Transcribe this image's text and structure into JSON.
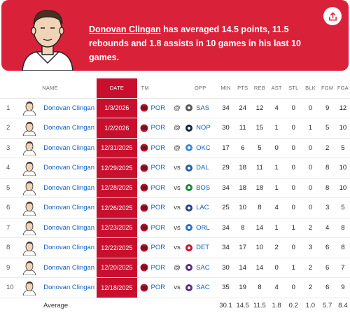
{
  "banner": {
    "player_name": "Donovan Clingan",
    "summary_text": " has averaged 14.5 points, 11.5 rebounds and 1.8 assists in 10 games in his last 10 games.",
    "share_icon": "share-icon"
  },
  "table": {
    "headers": {
      "rank": "",
      "name": "NAME",
      "date": "DATE",
      "tm": "TM",
      "ha": "",
      "opp": "OPP",
      "min": "MIN",
      "pts": "PTS",
      "reb": "REB",
      "ast": "AST",
      "stl": "STL",
      "blk": "BLK",
      "fgm": "FGM",
      "fga": "FGA"
    },
    "rows": [
      {
        "rank": "1",
        "name": "Donovan Clingan",
        "date": "1/3/2026",
        "tm": "POR",
        "ha": "@",
        "opp": "SAS",
        "min": "34",
        "pts": "24",
        "reb": "12",
        "ast": "4",
        "stl": "0",
        "blk": "0",
        "fgm": "9",
        "fga": "12",
        "opp_color": "#555555",
        "opp_icon": "spurs-logo-icon"
      },
      {
        "rank": "2",
        "name": "Donovan Clingan",
        "date": "1/2/2026",
        "tm": "POR",
        "ha": "@",
        "opp": "NOP",
        "min": "30",
        "pts": "11",
        "reb": "15",
        "ast": "1",
        "stl": "0",
        "blk": "1",
        "fgm": "5",
        "fga": "10",
        "opp_color": "#0c2340",
        "opp_icon": "pelicans-logo-icon"
      },
      {
        "rank": "3",
        "name": "Donovan Clingan",
        "date": "12/31/2025",
        "tm": "POR",
        "ha": "@",
        "opp": "OKC",
        "min": "17",
        "pts": "6",
        "reb": "5",
        "ast": "0",
        "stl": "0",
        "blk": "0",
        "fgm": "2",
        "fga": "5",
        "opp_color": "#3a8bd8",
        "opp_icon": "thunder-logo-icon"
      },
      {
        "rank": "4",
        "name": "Donovan Clingan",
        "date": "12/29/2025",
        "tm": "POR",
        "ha": "vs",
        "opp": "DAL",
        "min": "29",
        "pts": "18",
        "reb": "11",
        "ast": "1",
        "stl": "0",
        "blk": "0",
        "fgm": "8",
        "fga": "10",
        "opp_color": "#1d5fa8",
        "opp_icon": "mavericks-logo-icon"
      },
      {
        "rank": "5",
        "name": "Donovan Clingan",
        "date": "12/28/2025",
        "tm": "POR",
        "ha": "vs",
        "opp": "BOS",
        "min": "34",
        "pts": "18",
        "reb": "18",
        "ast": "1",
        "stl": "0",
        "blk": "0",
        "fgm": "8",
        "fga": "10",
        "opp_color": "#188a3c",
        "opp_icon": "celtics-logo-icon"
      },
      {
        "rank": "6",
        "name": "Donovan Clingan",
        "date": "12/26/2025",
        "tm": "POR",
        "ha": "vs",
        "opp": "LAC",
        "min": "25",
        "pts": "10",
        "reb": "8",
        "ast": "4",
        "stl": "0",
        "blk": "0",
        "fgm": "3",
        "fga": "5",
        "opp_color": "#1d428a",
        "opp_icon": "clippers-logo-icon"
      },
      {
        "rank": "7",
        "name": "Donovan Clingan",
        "date": "12/23/2025",
        "tm": "POR",
        "ha": "vs",
        "opp": "ORL",
        "min": "34",
        "pts": "8",
        "reb": "14",
        "ast": "1",
        "stl": "1",
        "blk": "2",
        "fgm": "4",
        "fga": "8",
        "opp_color": "#2a6fc9",
        "opp_icon": "magic-logo-icon"
      },
      {
        "rank": "8",
        "name": "Donovan Clingan",
        "date": "12/22/2025",
        "tm": "POR",
        "ha": "vs",
        "opp": "DET",
        "min": "34",
        "pts": "17",
        "reb": "10",
        "ast": "2",
        "stl": "0",
        "blk": "3",
        "fgm": "6",
        "fga": "8",
        "opp_color": "#c8102e",
        "opp_icon": "pistons-logo-icon"
      },
      {
        "rank": "9",
        "name": "Donovan Clingan",
        "date": "12/20/2025",
        "tm": "POR",
        "ha": "@",
        "opp": "SAC",
        "min": "30",
        "pts": "14",
        "reb": "14",
        "ast": "0",
        "stl": "1",
        "blk": "2",
        "fgm": "6",
        "fga": "7",
        "opp_color": "#5a2d81",
        "opp_icon": "kings-logo-icon"
      },
      {
        "rank": "10",
        "name": "Donovan Clingan",
        "date": "12/18/2025",
        "tm": "POR",
        "ha": "vs",
        "opp": "SAC",
        "min": "35",
        "pts": "19",
        "reb": "8",
        "ast": "4",
        "stl": "0",
        "blk": "2",
        "fgm": "6",
        "fga": "9",
        "opp_color": "#5a2d81",
        "opp_icon": "kings-logo-icon"
      }
    ],
    "average": {
      "label": "Average",
      "min": "30.1",
      "pts": "14.5",
      "reb": "11.5",
      "ast": "1.8",
      "stl": "0.2",
      "blk": "1.0",
      "fgm": "5.7",
      "fga": "8.4"
    }
  },
  "colors": {
    "banner_red": "#d9223a",
    "date_column_red": "#c8102e",
    "link_blue": "#1060c6",
    "trail_blazers_red": "#c8102e"
  }
}
